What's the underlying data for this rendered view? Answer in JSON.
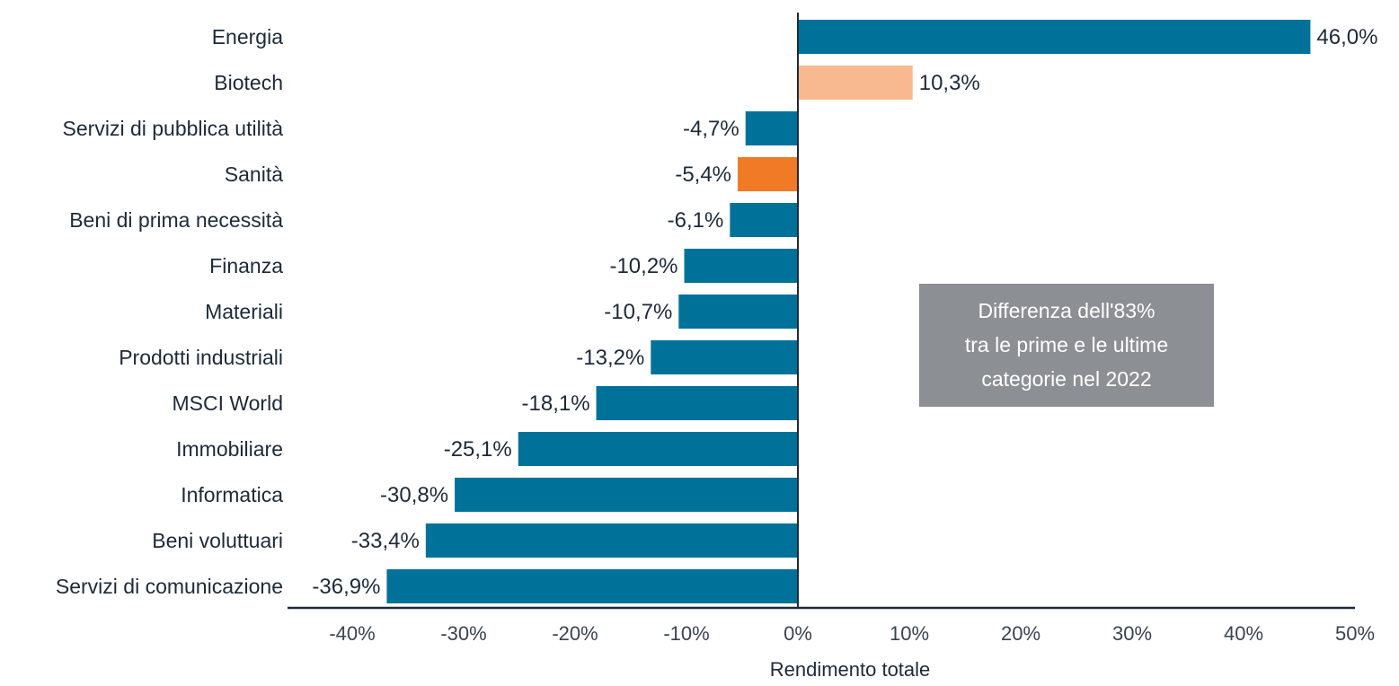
{
  "chart_data": {
    "type": "bar",
    "orientation": "horizontal",
    "categories": [
      "Energia",
      "Biotech",
      "Servizi di pubblica utilità",
      "Sanità",
      "Beni di prima necessità",
      "Finanza",
      "Materiali",
      "Prodotti industriali",
      "MSCI World",
      "Immobiliare",
      "Informatica",
      "Beni voluttuari",
      "Servizi di comunicazione"
    ],
    "values": [
      46.0,
      10.3,
      -4.7,
      -5.4,
      -6.1,
      -10.2,
      -10.7,
      -13.2,
      -18.1,
      -25.1,
      -30.8,
      -33.4,
      -36.9
    ],
    "value_labels": [
      "46,0%",
      "10,3%",
      "-4,7%",
      "-5,4%",
      "-6,1%",
      "-10,2%",
      "-10,7%",
      "-13,2%",
      "-18,1%",
      "-25,1%",
      "-30,8%",
      "-33,4%",
      "-36,9%"
    ],
    "bar_colors": [
      "#007299",
      "#f9b990",
      "#007299",
      "#f07a26",
      "#007299",
      "#007299",
      "#007299",
      "#007299",
      "#007299",
      "#007299",
      "#007299",
      "#007299",
      "#007299"
    ],
    "xlim": [
      -40,
      50
    ],
    "xticks": [
      -40,
      -30,
      -20,
      -10,
      0,
      10,
      20,
      30,
      40,
      50
    ],
    "xtick_labels": [
      "-40%",
      "-30%",
      "-20%",
      "-10%",
      "0%",
      "10%",
      "20%",
      "30%",
      "40%",
      "50%"
    ],
    "xlabel": "Rendimento totale",
    "ylabel": "",
    "title": "",
    "grid": false,
    "legend": "none",
    "annotation": {
      "lines": [
        "Differenza dell'83%",
        "tra le prime e le ultime",
        "categorie nel 2022"
      ],
      "background": "#8c8f93",
      "text_color": "#ffffff"
    }
  }
}
